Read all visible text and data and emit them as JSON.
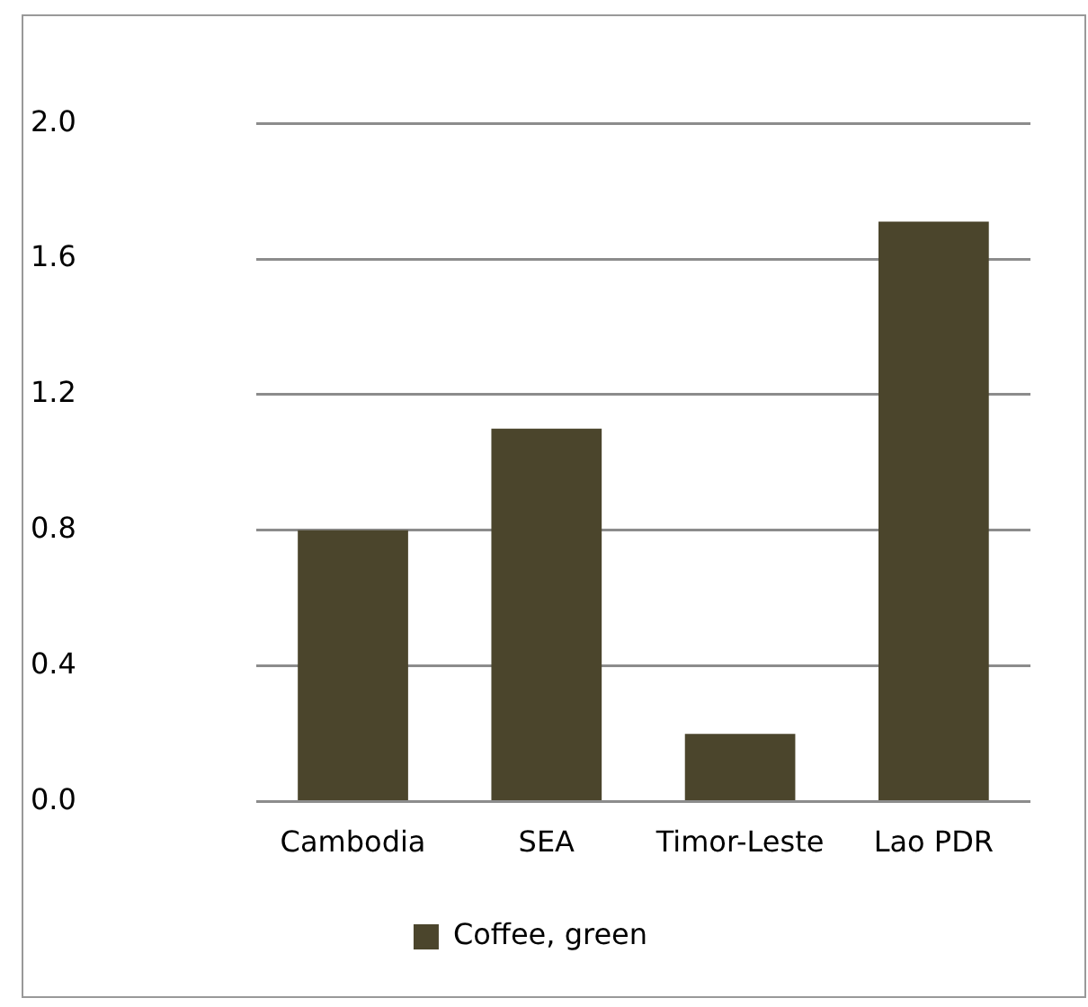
{
  "chart_data": {
    "type": "bar",
    "categories": [
      "Cambodia",
      "SEA",
      "Timor-Leste",
      "Lao PDR"
    ],
    "series": [
      {
        "name": "Coffee, green",
        "color": "#4b452c",
        "values": [
          0.8,
          1.1,
          0.2,
          1.71
        ]
      }
    ],
    "ylim": [
      0,
      2
    ],
    "yticks": [
      {
        "value": 0,
        "label": "0.0"
      },
      {
        "value": 0.4,
        "label": "0.4"
      },
      {
        "value": 0.8,
        "label": "0.8"
      },
      {
        "value": 1.2,
        "label": "1.2"
      },
      {
        "value": 1.6,
        "label": "1.6"
      },
      {
        "value": 2,
        "label": "2.0"
      }
    ],
    "grid": "y",
    "legend": "bottom"
  }
}
